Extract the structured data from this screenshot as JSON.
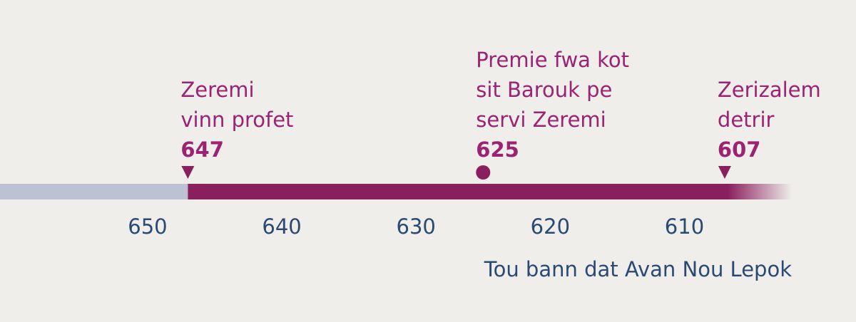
{
  "chart_data": {
    "type": "timeline",
    "x_label": "Tou bann dat Avan Nou Lepok",
    "xlim": [
      661,
      602
    ],
    "xticks": [
      650,
      640,
      630,
      620,
      610
    ],
    "base_color": "#bcc2d3",
    "color": "#8a1f5d",
    "label_color": "#9c2371",
    "axis_color": "#2b4a72",
    "events": [
      {
        "lines": [
          "Zeremi",
          "vinn profet"
        ],
        "year": 647,
        "marker": "triangle"
      },
      {
        "lines": [
          "Premie fwa kot",
          "sit Barouk pe",
          "servi Zeremi"
        ],
        "year": 625,
        "marker": "circle"
      },
      {
        "lines": [
          "Zerizalem",
          "detrir"
        ],
        "year": 607,
        "marker": "triangle"
      }
    ]
  }
}
